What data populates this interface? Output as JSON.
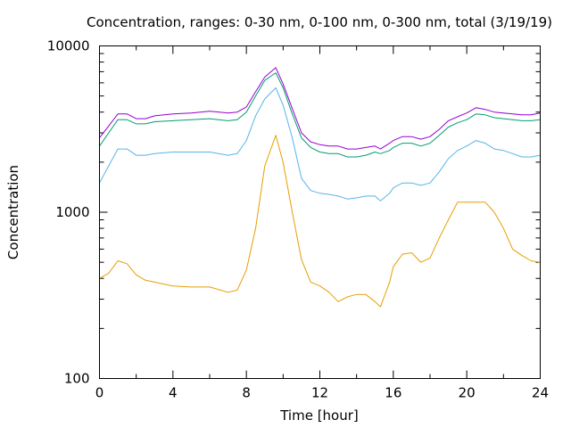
{
  "chart_data": {
    "type": "line",
    "title": "Concentration, ranges: 0-30 nm, 0-100 nm, 0-300 nm, total (3/19/19)",
    "xlabel": "Time [hour]",
    "ylabel": "Concentration",
    "xlim": [
      0,
      24
    ],
    "ylim": [
      100,
      10000
    ],
    "yscale": "log",
    "grid": false,
    "xticks": [
      0,
      4,
      8,
      12,
      16,
      20,
      24
    ],
    "xtick_labels": [
      "0",
      "4",
      "8",
      "12",
      "16",
      "20",
      "24"
    ],
    "yticks": [
      100,
      1000,
      10000
    ],
    "ytick_labels": [
      "100",
      "1000",
      "10000"
    ],
    "series": [
      {
        "color": "#e69f00",
        "x": [
          0,
          0.5,
          1,
          1.5,
          2,
          2.5,
          3,
          4,
          5,
          6,
          7,
          7.5,
          8,
          8.5,
          9,
          9.6,
          10,
          10.5,
          11,
          11.5,
          12,
          12.5,
          13,
          13.5,
          14,
          14.5,
          15,
          15.3,
          15.8,
          16,
          16.5,
          17,
          17.5,
          18,
          18.5,
          19,
          19.5,
          20,
          20.5,
          21,
          21.5,
          22,
          22.5,
          23,
          23.5,
          24
        ],
        "y": [
          400,
          430,
          510,
          490,
          420,
          390,
          380,
          360,
          355,
          355,
          330,
          340,
          450,
          800,
          1900,
          2900,
          2000,
          1000,
          520,
          380,
          360,
          330,
          290,
          310,
          320,
          320,
          290,
          270,
          380,
          470,
          560,
          570,
          500,
          530,
          700,
          900,
          1150,
          1150,
          1150,
          1150,
          1000,
          800,
          600,
          550,
          510,
          500
        ]
      },
      {
        "color": "#56b4e9",
        "x": [
          0,
          0.5,
          1,
          1.5,
          2,
          2.5,
          3,
          4,
          5,
          6,
          7,
          7.5,
          8,
          8.5,
          9,
          9.6,
          10,
          10.5,
          11,
          11.5,
          12,
          12.5,
          13,
          13.5,
          14,
          14.5,
          15,
          15.3,
          15.8,
          16,
          16.5,
          17,
          17.5,
          18,
          18.5,
          19,
          19.5,
          20,
          20.5,
          21,
          21.5,
          22,
          22.5,
          23,
          23.5,
          24
        ],
        "y": [
          1500,
          1900,
          2400,
          2400,
          2200,
          2200,
          2250,
          2300,
          2300,
          2300,
          2200,
          2250,
          2700,
          3800,
          4800,
          5600,
          4400,
          2800,
          1600,
          1350,
          1300,
          1280,
          1250,
          1200,
          1220,
          1250,
          1250,
          1170,
          1300,
          1400,
          1500,
          1500,
          1450,
          1500,
          1750,
          2100,
          2350,
          2500,
          2700,
          2600,
          2400,
          2350,
          2250,
          2150,
          2150,
          2200
        ]
      },
      {
        "color": "#009e73",
        "x": [
          0,
          0.5,
          1,
          1.5,
          2,
          2.5,
          3,
          4,
          5,
          6,
          7,
          7.5,
          8,
          8.5,
          9,
          9.6,
          10,
          10.5,
          11,
          11.5,
          12,
          12.5,
          13,
          13.5,
          14,
          14.5,
          15,
          15.3,
          15.8,
          16,
          16.5,
          17,
          17.5,
          18,
          18.5,
          19,
          19.5,
          20,
          20.5,
          21,
          21.5,
          22,
          22.5,
          23,
          23.5,
          24
        ],
        "y": [
          2500,
          3000,
          3600,
          3600,
          3400,
          3400,
          3500,
          3550,
          3600,
          3650,
          3550,
          3600,
          4000,
          5000,
          6200,
          6900,
          5600,
          3900,
          2800,
          2450,
          2300,
          2250,
          2250,
          2150,
          2150,
          2200,
          2300,
          2250,
          2350,
          2450,
          2600,
          2600,
          2500,
          2600,
          2900,
          3250,
          3450,
          3600,
          3900,
          3850,
          3700,
          3650,
          3600,
          3550,
          3550,
          3600
        ]
      },
      {
        "color": "#9400d3",
        "x": [
          0,
          0.5,
          1,
          1.5,
          2,
          2.5,
          3,
          4,
          5,
          6,
          7,
          7.5,
          8,
          8.5,
          9,
          9.6,
          10,
          10.5,
          11,
          11.5,
          12,
          12.5,
          13,
          13.5,
          14,
          14.5,
          15,
          15.3,
          15.8,
          16,
          16.5,
          17,
          17.5,
          18,
          18.5,
          19,
          19.5,
          20,
          20.5,
          21,
          21.5,
          22,
          22.5,
          23,
          23.5,
          24
        ],
        "y": [
          2800,
          3300,
          3900,
          3900,
          3650,
          3650,
          3800,
          3900,
          3950,
          4050,
          3950,
          4000,
          4300,
          5300,
          6500,
          7400,
          5900,
          4200,
          3000,
          2650,
          2550,
          2500,
          2500,
          2400,
          2400,
          2450,
          2500,
          2400,
          2600,
          2700,
          2850,
          2850,
          2750,
          2850,
          3150,
          3550,
          3750,
          3950,
          4250,
          4150,
          4000,
          3950,
          3900,
          3850,
          3850,
          3950
        ]
      }
    ]
  }
}
